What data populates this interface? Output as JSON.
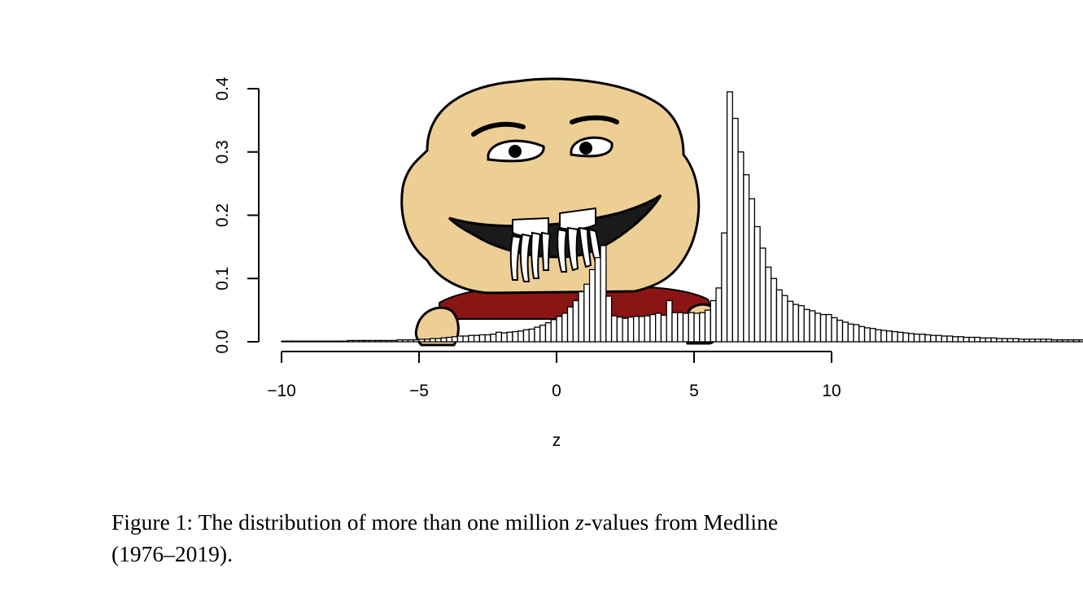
{
  "chart_data": {
    "type": "bar",
    "title": "",
    "xlabel": "z",
    "ylabel": "",
    "xlim": [
      -10,
      10
    ],
    "ylim": [
      0,
      0.4
    ],
    "x_ticks": [
      -10,
      -5,
      0,
      5,
      10
    ],
    "x_tick_labels": [
      "−10",
      "−5",
      "0",
      "5",
      "10"
    ],
    "y_ticks": [
      0,
      0.1,
      0.2,
      0.3,
      0.4
    ],
    "y_tick_labels": [
      "0.0",
      "0.1",
      "0.2",
      "0.3",
      "0.4"
    ],
    "bin_width": 0.2,
    "x_start": -10,
    "values": [
      0.001,
      0.001,
      0.001,
      0.001,
      0.001,
      0.001,
      0.001,
      0.001,
      0.001,
      0.001,
      0.001,
      0.001,
      0.002,
      0.002,
      0.002,
      0.002,
      0.002,
      0.002,
      0.002,
      0.002,
      0.002,
      0.003,
      0.003,
      0.003,
      0.003,
      0.004,
      0.004,
      0.005,
      0.005,
      0.006,
      0.007,
      0.008,
      0.009,
      0.009,
      0.01,
      0.01,
      0.011,
      0.011,
      0.012,
      0.015,
      0.014,
      0.015,
      0.016,
      0.017,
      0.019,
      0.02,
      0.023,
      0.026,
      0.03,
      0.035,
      0.04,
      0.045,
      0.055,
      0.065,
      0.079,
      0.091,
      0.114,
      0.133,
      0.152,
      0.072,
      0.041,
      0.039,
      0.037,
      0.039,
      0.04,
      0.04,
      0.041,
      0.043,
      0.045,
      0.042,
      0.065,
      0.046,
      0.046,
      0.045,
      0.046,
      0.045,
      0.046,
      0.05,
      0.065,
      0.085,
      0.172,
      0.395,
      0.353,
      0.3,
      0.264,
      0.226,
      0.182,
      0.148,
      0.118,
      0.1,
      0.082,
      0.073,
      0.064,
      0.059,
      0.057,
      0.051,
      0.049,
      0.045,
      0.043,
      0.043,
      0.038,
      0.034,
      0.031,
      0.028,
      0.027,
      0.024,
      0.022,
      0.021,
      0.019,
      0.018,
      0.017,
      0.016,
      0.015,
      0.014,
      0.013,
      0.012,
      0.012,
      0.011,
      0.01,
      0.01,
      0.009,
      0.009,
      0.008,
      0.008,
      0.007,
      0.007,
      0.007,
      0.006,
      0.006,
      0.006,
      0.005,
      0.005,
      0.005,
      0.005,
      0.004,
      0.004,
      0.004,
      0.004,
      0.004,
      0.004,
      0.003,
      0.003,
      0.003,
      0.003,
      0.003,
      0.003,
      0.003,
      0.003,
      0.003,
      0.003,
      0.003,
      0.003,
      0.003,
      0.003,
      0.003,
      0.003,
      0.003,
      0.003,
      0.003,
      0.003
    ]
  },
  "caption": {
    "prefix": "Figure 1: The distribution of more than one million ",
    "variable": "z",
    "suffix": "-values from Medline",
    "line2": "(1976–2019)."
  },
  "colors": {
    "face": "#edcf96",
    "shirt": "#8b1414",
    "mouth": "#1a1a1a",
    "bar_fill": "#ffffff",
    "outline": "#000000"
  }
}
